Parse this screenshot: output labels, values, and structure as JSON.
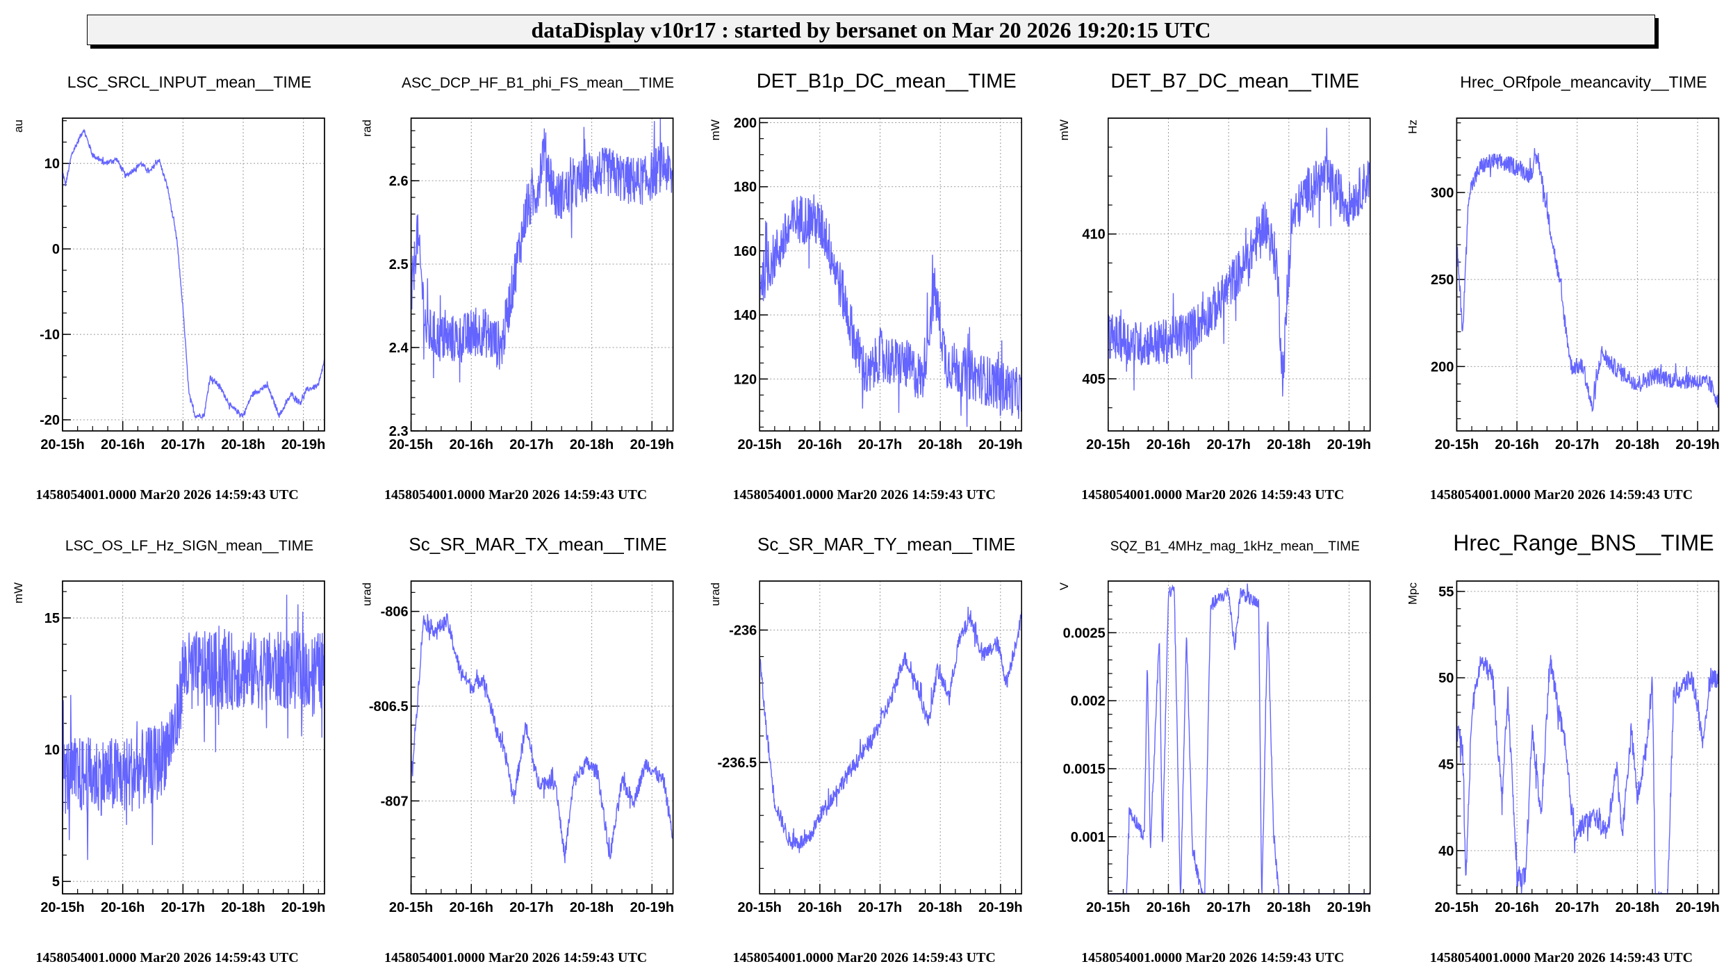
{
  "header": {
    "title": "dataDisplay v10r17 : started by bersanet on Mar 20 2026 19:20:15 UTC"
  },
  "colors": {
    "trace": "#6464ff",
    "grid": "#999999",
    "frame": "#000000"
  },
  "chart_data": [
    {
      "type": "line",
      "title": "LSC_SRCL_INPUT_mean__TIME",
      "ylabel": "au",
      "xlim": [
        15,
        19.35
      ],
      "ylim": [
        -21.3,
        15.3
      ],
      "yticks": [
        -20,
        -10,
        0,
        10
      ],
      "ytick_labels": [
        "-20",
        "-10",
        "0",
        "10"
      ],
      "minor": 2.5,
      "noise": 0.3,
      "x": [
        15.0,
        15.05,
        15.15,
        15.35,
        15.5,
        15.7,
        15.9,
        16.05,
        16.3,
        16.45,
        16.6,
        16.75,
        16.9,
        17.0,
        17.1,
        17.2,
        17.35,
        17.45,
        17.6,
        17.8,
        18.0,
        18.15,
        18.4,
        18.6,
        18.8,
        18.95,
        19.05,
        19.25,
        19.35
      ],
      "y": [
        9,
        7.5,
        11,
        14,
        11,
        10,
        10.5,
        8.5,
        10,
        9,
        10.5,
        7,
        1,
        -7,
        -17,
        -19.5,
        -19.5,
        -15,
        -16,
        -18.5,
        -19.5,
        -17,
        -16,
        -19.5,
        -17,
        -18,
        -16.5,
        -16,
        -13
      ]
    },
    {
      "type": "line",
      "title": "ASC_DCP_HF_B1_phi_FS_mean__TIME",
      "ylabel": "rad",
      "xlim": [
        15,
        19.35
      ],
      "ylim": [
        2.3,
        2.675
      ],
      "yticks": [
        2.3,
        2.4,
        2.5,
        2.6
      ],
      "ytick_labels": [
        "2.3",
        "2.4",
        "2.5",
        "2.6"
      ],
      "minor": 0.02,
      "noise": 0.03,
      "x": [
        15.0,
        15.1,
        15.25,
        15.5,
        15.8,
        16.2,
        16.5,
        16.75,
        16.9,
        17.1,
        17.2,
        17.4,
        17.7,
        18.0,
        18.3,
        18.6,
        18.9,
        19.2,
        19.35
      ],
      "y": [
        2.45,
        2.54,
        2.42,
        2.41,
        2.41,
        2.42,
        2.4,
        2.5,
        2.56,
        2.59,
        2.64,
        2.58,
        2.59,
        2.61,
        2.61,
        2.6,
        2.6,
        2.62,
        2.6
      ]
    },
    {
      "type": "line",
      "title": "DET_B1p_DC_mean__TIME",
      "ylabel": "mW",
      "xlim": [
        15,
        19.35
      ],
      "ylim": [
        103.8,
        201.4
      ],
      "yticks": [
        120,
        140,
        160,
        180,
        200
      ],
      "ytick_labels": [
        "120",
        "140",
        "160",
        "180",
        "200"
      ],
      "minor": 5,
      "noise": 8,
      "x": [
        15.0,
        15.3,
        15.6,
        15.9,
        16.1,
        16.4,
        16.6,
        16.8,
        17.0,
        17.2,
        17.4,
        17.7,
        17.9,
        18.1,
        18.4,
        18.7,
        19.0,
        19.35
      ],
      "y": [
        150,
        160,
        170,
        170,
        165,
        145,
        130,
        120,
        128,
        125,
        125,
        120,
        148,
        125,
        122,
        120,
        118,
        115
      ]
    },
    {
      "type": "line",
      "title": "DET_B7_DC_mean__TIME",
      "ylabel": "mW",
      "xlim": [
        15,
        19.35
      ],
      "ylim": [
        403.2,
        414
      ],
      "yticks": [
        405,
        410
      ],
      "ytick_labels": [
        "405",
        "410"
      ],
      "minor": 1,
      "noise": 0.8,
      "x": [
        15.0,
        15.5,
        16.0,
        16.4,
        16.8,
        17.1,
        17.3,
        17.6,
        17.8,
        17.9,
        18.05,
        18.3,
        18.6,
        19.0,
        19.35
      ],
      "y": [
        406.5,
        406.2,
        406.3,
        406.7,
        407.5,
        408.5,
        409,
        410.5,
        409,
        405,
        410.5,
        411.5,
        412,
        411,
        412
      ]
    },
    {
      "type": "line",
      "title": "Hrec_ORfpole_meancavity__TIME",
      "ylabel": "Hz",
      "xlim": [
        15,
        19.35
      ],
      "ylim": [
        163,
        342.7
      ],
      "yticks": [
        200,
        250,
        300
      ],
      "ytick_labels": [
        "200",
        "250",
        "300"
      ],
      "minor": 10,
      "noise": 5,
      "x": [
        15.0,
        15.1,
        15.2,
        15.4,
        15.6,
        16.0,
        16.2,
        16.35,
        16.5,
        16.7,
        16.9,
        17.1,
        17.25,
        17.4,
        17.6,
        17.8,
        18.0,
        18.3,
        18.6,
        18.9,
        19.2,
        19.35
      ],
      "y": [
        270,
        220,
        300,
        315,
        318,
        315,
        310,
        320,
        290,
        250,
        200,
        200,
        175,
        208,
        200,
        195,
        190,
        195,
        192,
        192,
        190,
        180
      ]
    },
    {
      "type": "line",
      "title": "LSC_OS_LF_Hz_SIGN_mean__TIME",
      "ylabel": "mW",
      "xlim": [
        15,
        19.35
      ],
      "ylim": [
        4.53,
        16.4
      ],
      "yticks": [
        5,
        10,
        15
      ],
      "ytick_labels": [
        "5",
        "10",
        "15"
      ],
      "minor": 1,
      "noise": 1.5,
      "x": [
        15.0,
        15.5,
        16.0,
        16.6,
        16.9,
        17.0,
        17.5,
        18.0,
        19.35
      ],
      "y": [
        9,
        9,
        9,
        9.5,
        11,
        13,
        13,
        13,
        13
      ]
    },
    {
      "type": "line",
      "title": "Sc_SR_MAR_TX_mean__TIME",
      "ylabel": "urad",
      "xlim": [
        15,
        19.35
      ],
      "ylim": [
        -807.49,
        -805.84
      ],
      "yticks": [
        -807,
        -806.5,
        -806
      ],
      "ytick_labels": [
        "-807",
        "-806.5",
        "-806"
      ],
      "minor": 0.1,
      "noise": 0.04,
      "x": [
        15.0,
        15.1,
        15.2,
        15.4,
        15.6,
        15.8,
        16.0,
        16.2,
        16.4,
        16.6,
        16.7,
        16.9,
        17.1,
        17.4,
        17.55,
        17.7,
        17.9,
        18.1,
        18.3,
        18.5,
        18.7,
        18.9,
        19.2,
        19.35
      ],
      "y": [
        -806.9,
        -806.5,
        -806.05,
        -806.1,
        -806.05,
        -806.3,
        -806.4,
        -806.35,
        -806.6,
        -806.8,
        -807.0,
        -806.6,
        -806.9,
        -806.9,
        -807.3,
        -806.9,
        -806.8,
        -806.85,
        -807.3,
        -806.9,
        -807.0,
        -806.8,
        -806.9,
        -807.2
      ]
    },
    {
      "type": "line",
      "title": "Sc_SR_MAR_TY_mean__TIME",
      "ylabel": "urad",
      "xlim": [
        15,
        19.35
      ],
      "ylim": [
        -236.996,
        -235.815
      ],
      "yticks": [
        -236.5,
        -236
      ],
      "ytick_labels": [
        "-236.5",
        "-236"
      ],
      "minor": 0.1,
      "noise": 0.03,
      "x": [
        15.0,
        15.1,
        15.25,
        15.5,
        15.8,
        16.0,
        16.3,
        16.6,
        16.9,
        17.2,
        17.4,
        17.6,
        17.8,
        17.95,
        18.15,
        18.3,
        18.5,
        18.7,
        18.95,
        19.1,
        19.35
      ],
      "y": [
        -236.1,
        -236.35,
        -236.65,
        -236.8,
        -236.8,
        -236.7,
        -236.6,
        -236.5,
        -236.4,
        -236.25,
        -236.1,
        -236.2,
        -236.35,
        -236.15,
        -236.25,
        -236.05,
        -235.95,
        -236.1,
        -236.05,
        -236.2,
        -235.95
      ]
    },
    {
      "type": "line",
      "title": "SQZ_B1_4MHz_mag_1kHz_mean__TIME",
      "ylabel": "V",
      "xlim": [
        15,
        19.35
      ],
      "ylim": [
        0.00058,
        0.00288
      ],
      "yticks": [
        0.001,
        0.0015,
        0.002,
        0.0025
      ],
      "ytick_labels": [
        "0.001",
        "0.0015",
        "0.002",
        "0.0025"
      ],
      "minor": 0.0001,
      "noise": 5e-05,
      "x": [
        15.0,
        15.3,
        15.35,
        15.6,
        15.65,
        15.7,
        15.85,
        15.9,
        16.0,
        16.1,
        16.2,
        16.3,
        16.4,
        16.6,
        16.7,
        17.0,
        17.1,
        17.2,
        17.5,
        17.55,
        17.65,
        17.75,
        17.85,
        19.35
      ],
      "y": [
        0.0005,
        0.0005,
        0.0012,
        0.001,
        0.0023,
        0.0009,
        0.0025,
        0.0009,
        0.0028,
        0.0028,
        0.0005,
        0.0025,
        0.0009,
        0.0005,
        0.0027,
        0.0028,
        0.0024,
        0.0028,
        0.0027,
        0.0005,
        0.0026,
        0.001,
        0.0005,
        0.0005
      ]
    },
    {
      "type": "line",
      "title": "Hrec_Range_BNS__TIME",
      "ylabel": "Mpc",
      "xlim": [
        15,
        19.35
      ],
      "ylim": [
        37.5,
        55.6
      ],
      "yticks": [
        40,
        45,
        50,
        55
      ],
      "ytick_labels": [
        "40",
        "45",
        "50",
        "55"
      ],
      "minor": 1,
      "noise": 0.6,
      "x": [
        15.0,
        15.1,
        15.15,
        15.25,
        15.4,
        15.6,
        15.75,
        15.85,
        16.0,
        16.15,
        16.25,
        16.4,
        16.55,
        16.65,
        16.8,
        16.95,
        17.1,
        17.3,
        17.5,
        17.65,
        17.75,
        17.9,
        18.0,
        18.15,
        18.25,
        18.3,
        18.5,
        18.6,
        18.75,
        18.9,
        19.0,
        19.1,
        19.2,
        19.35
      ],
      "y": [
        47,
        46,
        38,
        48,
        51,
        50,
        43,
        49,
        38.5,
        38.5,
        47,
        42,
        51,
        49,
        46,
        41,
        41.5,
        42,
        41,
        45,
        41,
        47,
        43,
        46,
        50,
        37,
        37,
        49,
        49.5,
        50,
        48.5,
        46,
        50,
        50
      ]
    }
  ],
  "xaxis": {
    "ticks": [
      15,
      16,
      17,
      18,
      19
    ],
    "tick_labels": [
      "20-15h",
      "20-16h",
      "20-17h",
      "20-18h",
      "20-19h"
    ]
  },
  "footer": "1458054001.0000 Mar20 2026 14:59:43 UTC"
}
